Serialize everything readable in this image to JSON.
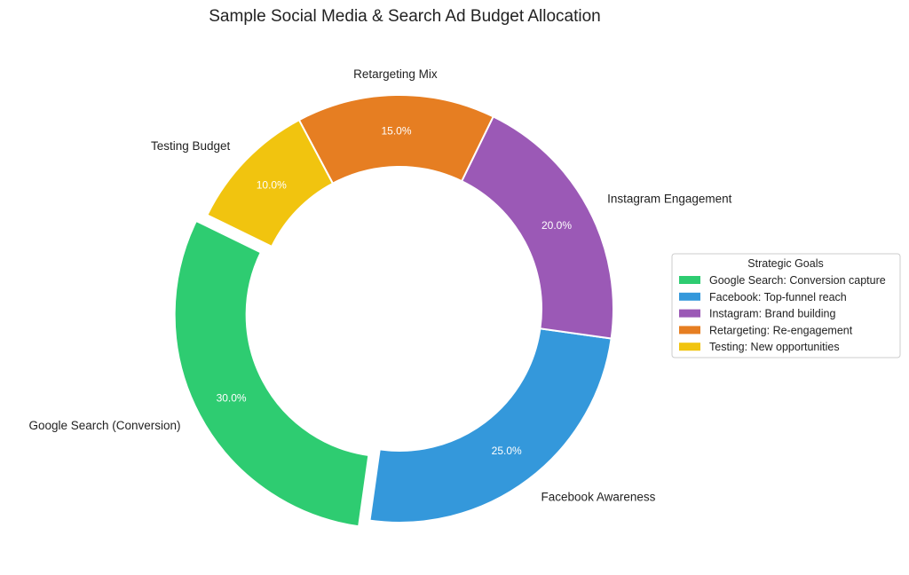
{
  "chart_data": {
    "type": "pie",
    "variant": "donut",
    "title": "Sample Social Media & Search Ad Budget Allocation",
    "categories": [
      "Google Search (Conversion)",
      "Facebook Awareness",
      "Instagram Engagement",
      "Retargeting Mix",
      "Testing Budget"
    ],
    "values": [
      30.0,
      25.0,
      20.0,
      15.0,
      10.0
    ],
    "percent_labels": [
      "30.0%",
      "25.0%",
      "20.0%",
      "15.0%",
      "10.0%"
    ],
    "colors": [
      "#2ecc71",
      "#3498db",
      "#9b59b6",
      "#e67e22",
      "#f1c40f"
    ],
    "exploded": [
      true,
      false,
      false,
      false,
      false
    ],
    "legend": {
      "title": "Strategic Goals",
      "placement": "center-right",
      "entries": [
        "Google Search: Conversion capture",
        "Facebook: Top-funnel reach",
        "Instagram: Brand building",
        "Retargeting: Re-engagement",
        "Testing: New opportunities"
      ]
    }
  }
}
